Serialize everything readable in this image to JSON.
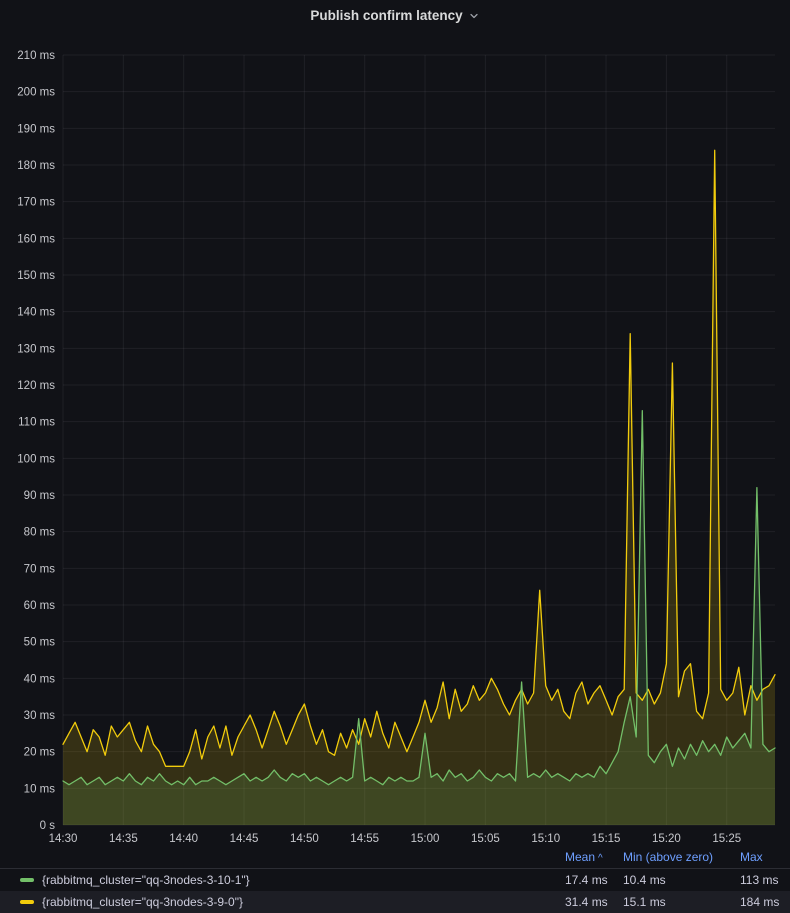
{
  "panel": {
    "title": "Publish confirm latency"
  },
  "icons": {
    "title_dropdown": "chevron-down-icon",
    "mean_sort": "caret-up-icon"
  },
  "colors": {
    "background": "#111217",
    "grid": "rgba(204,204,220,0.08)",
    "axis_text": "#C7C8CD",
    "legend_header_blue": "#6E9FFF",
    "series_green": "#73BF69",
    "series_yellow": "#F2CC0C"
  },
  "chart_data": {
    "type": "line",
    "title": "Publish confirm latency",
    "grid": true,
    "legend_position": "bottom-table",
    "y_axis": {
      "unit": "ms",
      "min": 0,
      "max": 210,
      "tick_step": 10,
      "tick_labels": [
        "0 s",
        "10 ms",
        "20 ms",
        "30 ms",
        "40 ms",
        "50 ms",
        "60 ms",
        "70 ms",
        "80 ms",
        "90 ms",
        "100 ms",
        "110 ms",
        "120 ms",
        "130 ms",
        "140 ms",
        "150 ms",
        "160 ms",
        "170 ms",
        "180 ms",
        "190 ms",
        "200 ms",
        "210 ms"
      ]
    },
    "x_axis": {
      "start_time": "14:30",
      "end_time": "15:29",
      "ticks": [
        {
          "label": "14:30",
          "minute": 0
        },
        {
          "label": "14:35",
          "minute": 5
        },
        {
          "label": "14:40",
          "minute": 10
        },
        {
          "label": "14:45",
          "minute": 15
        },
        {
          "label": "14:50",
          "minute": 20
        },
        {
          "label": "14:55",
          "minute": 25
        },
        {
          "label": "15:00",
          "minute": 30
        },
        {
          "label": "15:05",
          "minute": 35
        },
        {
          "label": "15:10",
          "minute": 40
        },
        {
          "label": "15:15",
          "minute": 45
        },
        {
          "label": "15:20",
          "minute": 50
        },
        {
          "label": "15:25",
          "minute": 55
        }
      ]
    },
    "x_start_minute": 0,
    "x_step_minutes": 0.5,
    "series": [
      {
        "name": "{rabbitmq_cluster=\"qq-3nodes-3-10-1\"}",
        "color": "#73BF69",
        "fill_opacity": 0.16,
        "values": [
          12,
          11,
          12,
          13,
          11,
          12,
          13,
          11,
          12,
          13,
          12,
          14,
          12,
          11,
          13,
          12,
          14,
          12,
          11,
          12,
          11,
          13,
          11,
          12,
          12,
          13,
          12,
          11,
          12,
          13,
          14,
          12,
          13,
          12,
          13,
          15,
          13,
          12,
          14,
          13,
          14,
          12,
          13,
          12,
          11,
          12,
          13,
          12,
          13,
          29,
          12,
          13,
          12,
          11,
          13,
          12,
          13,
          12,
          12,
          13,
          25,
          13,
          14,
          12,
          15,
          13,
          14,
          12,
          13,
          15,
          13,
          12,
          14,
          13,
          14,
          12,
          39,
          13,
          14,
          13,
          15,
          13,
          14,
          13,
          12,
          14,
          13,
          14,
          13,
          16,
          14,
          17,
          20,
          28,
          35,
          24,
          113,
          19,
          17,
          20,
          22,
          16,
          21,
          18,
          22,
          19,
          23,
          20,
          22,
          19,
          24,
          21,
          23,
          25,
          21,
          92,
          22,
          20,
          21
        ]
      },
      {
        "name": "{rabbitmq_cluster=\"qq-3nodes-3-9-0\"}",
        "color": "#F2CC0C",
        "fill_opacity": 0.16,
        "values": [
          22,
          25,
          28,
          24,
          20,
          26,
          24,
          19,
          27,
          24,
          26,
          28,
          23,
          20,
          27,
          22,
          20,
          16,
          16,
          16,
          16,
          20,
          26,
          18,
          24,
          27,
          21,
          27,
          19,
          24,
          27,
          30,
          26,
          21,
          26,
          31,
          27,
          22,
          26,
          30,
          33,
          27,
          22,
          26,
          20,
          19,
          25,
          21,
          26,
          22,
          29,
          24,
          31,
          25,
          21,
          28,
          24,
          20,
          24,
          28,
          34,
          28,
          32,
          39,
          29,
          37,
          31,
          33,
          38,
          34,
          36,
          40,
          37,
          33,
          30,
          34,
          37,
          33,
          36,
          64,
          38,
          34,
          37,
          31,
          29,
          36,
          39,
          33,
          36,
          38,
          34,
          30,
          35,
          37,
          134,
          36,
          34,
          37,
          33,
          36,
          44,
          126,
          35,
          42,
          44,
          31,
          29,
          36,
          184,
          37,
          34,
          36,
          43,
          30,
          38,
          34,
          37,
          38,
          41
        ]
      }
    ]
  },
  "legend": {
    "columns": [
      {
        "label": "Mean",
        "sort": "asc"
      },
      {
        "label": "Min (above zero)",
        "sort": null
      },
      {
        "label": "Max",
        "sort": null
      }
    ],
    "rows": [
      {
        "label": "{rabbitmq_cluster=\"qq-3nodes-3-10-1\"}",
        "color": "#73BF69",
        "mean": "17.4 ms",
        "min": "10.4 ms",
        "max": "113 ms"
      },
      {
        "label": "{rabbitmq_cluster=\"qq-3nodes-3-9-0\"}",
        "color": "#F2CC0C",
        "mean": "31.4 ms",
        "min": "15.1 ms",
        "max": "184 ms"
      }
    ]
  }
}
